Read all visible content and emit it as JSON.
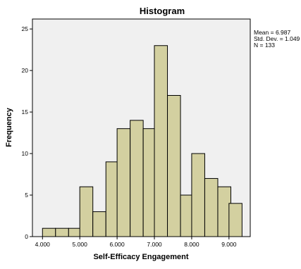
{
  "chart_data": {
    "type": "bar",
    "title": "Histogram",
    "xlabel": "Self-Efficacy Engagement",
    "ylabel": "Frequency",
    "bin_width": 0.5,
    "bin_starts": [
      4.0,
      4.35,
      4.7,
      5.0,
      5.35,
      5.7,
      6.0,
      6.35,
      6.7,
      7.0,
      7.35,
      7.7,
      8.0,
      8.35,
      8.7,
      9.0
    ],
    "values": [
      1,
      1,
      1,
      6,
      3,
      9,
      13,
      14,
      13,
      23,
      17,
      5,
      10,
      7,
      6,
      4
    ],
    "x_ticks": [
      4.0,
      5.0,
      6.0,
      7.0,
      8.0,
      9.0
    ],
    "x_tick_labels": [
      "4.000",
      "5.000",
      "6.000",
      "7.000",
      "8.000",
      "9.000"
    ],
    "xlim": [
      3.73,
      9.57
    ],
    "y_ticks": [
      0,
      5,
      10,
      15,
      20,
      25
    ],
    "ylim": [
      0,
      26.2
    ],
    "grid": false,
    "legend": "none",
    "bar_color": "#d3d0a0",
    "plot_background": "#f0f0f0",
    "stats": {
      "mean": "Mean = 6.987",
      "std_dev": "Std. Dev. = 1.049",
      "n": "N = 133"
    }
  }
}
